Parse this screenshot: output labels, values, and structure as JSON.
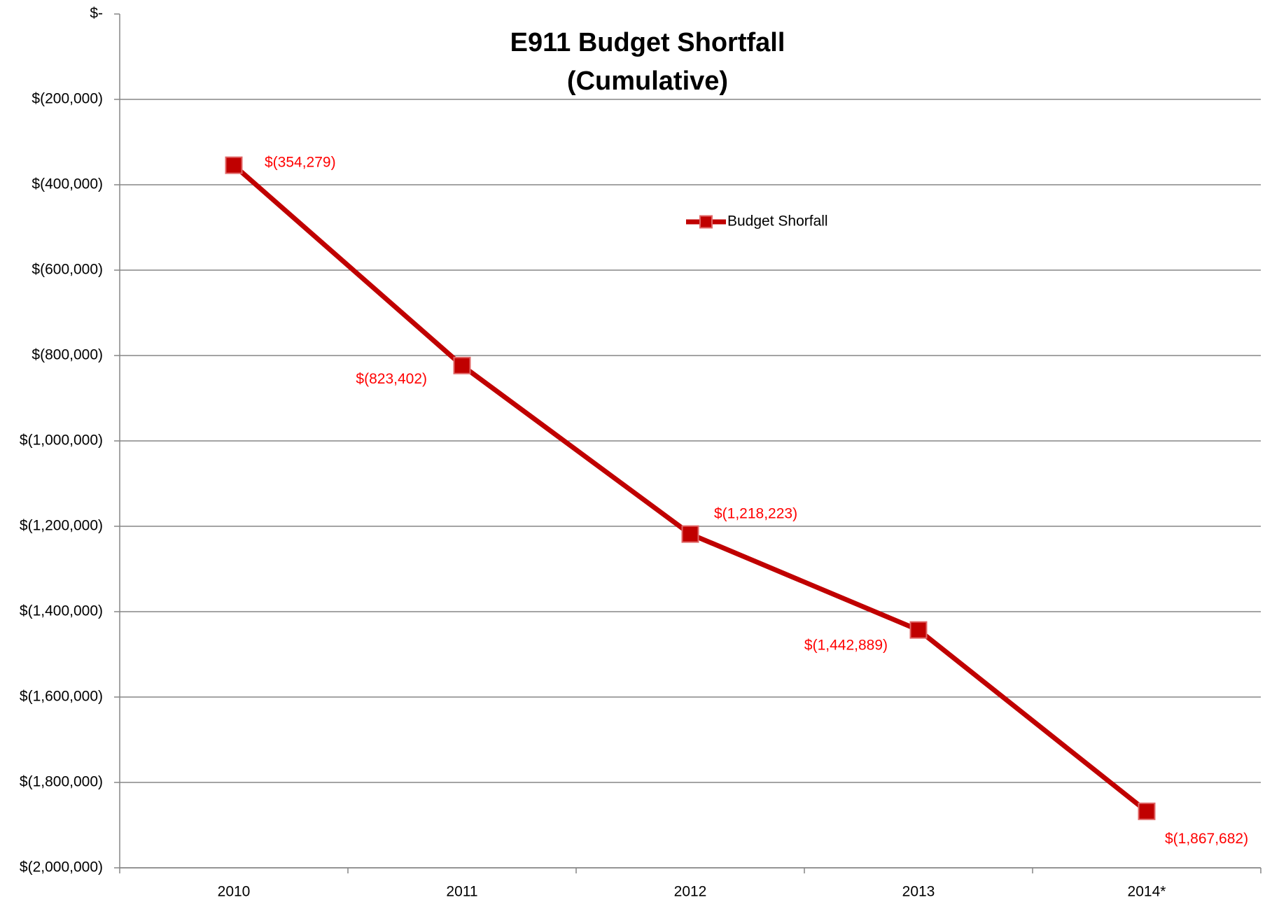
{
  "chart_data": {
    "type": "line",
    "title": "E911 Budget Shortfall",
    "subtitle": "(Cumulative)",
    "categories": [
      "2010",
      "2011",
      "2012",
      "2013",
      "2014*"
    ],
    "series": [
      {
        "name": "Budget Shorfall",
        "color": "#c00000",
        "values": [
          -354279,
          -823402,
          -1218223,
          -1442889,
          -1867682
        ],
        "value_labels": [
          "$(354,279)",
          "$(823,402)",
          "$(1,218,223)",
          "$(1,442,889)",
          "$(1,867,682)"
        ]
      }
    ],
    "ylim": [
      -2000000,
      0
    ],
    "yticks": [
      {
        "value": 0,
        "label": "$-"
      },
      {
        "value": -200000,
        "label": "$(200,000)"
      },
      {
        "value": -400000,
        "label": "$(400,000)"
      },
      {
        "value": -600000,
        "label": "$(600,000)"
      },
      {
        "value": -800000,
        "label": "$(800,000)"
      },
      {
        "value": -1000000,
        "label": "$(1,000,000)"
      },
      {
        "value": -1200000,
        "label": "$(1,200,000)"
      },
      {
        "value": -1400000,
        "label": "$(1,400,000)"
      },
      {
        "value": -1600000,
        "label": "$(1,600,000)"
      },
      {
        "value": -1800000,
        "label": "$(1,800,000)"
      },
      {
        "value": -2000000,
        "label": "$(2,000,000)"
      }
    ],
    "grid": true,
    "legend": "top-center",
    "value_label_color": "#ff0000"
  }
}
